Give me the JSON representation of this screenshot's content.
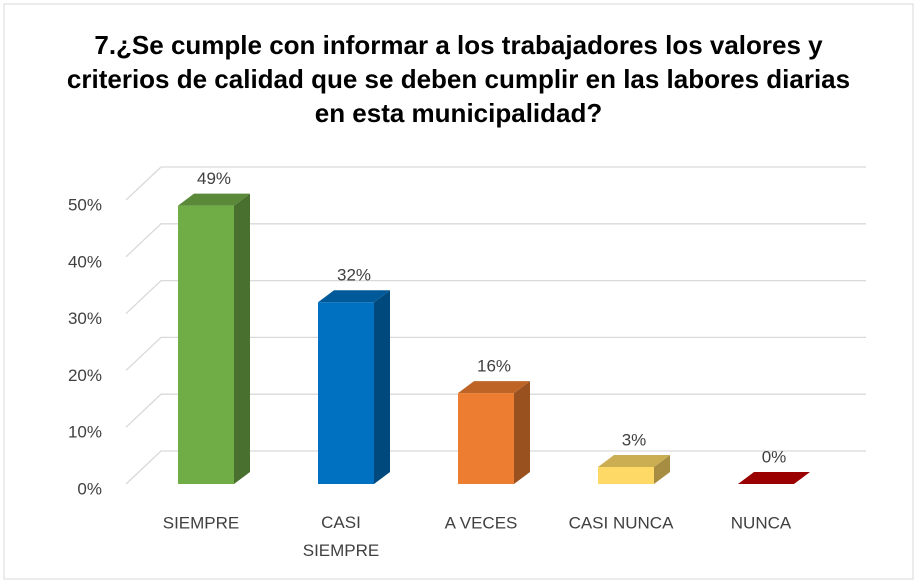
{
  "chart_data": {
    "type": "bar3d",
    "title": "7.¿Se cumple con informar a los trabajadores los valores y criterios de calidad que se deben cumplir en las labores diarias en esta municipalidad?",
    "categories": [
      "SIEMPRE",
      "CASI SIEMPRE",
      "A VECES",
      "CASI NUNCA",
      "NUNCA"
    ],
    "values": [
      49,
      32,
      16,
      3,
      0
    ],
    "value_labels": [
      "49%",
      "32%",
      "16%",
      "3%",
      "0%"
    ],
    "colors": [
      "#70ad47",
      "#0070c0",
      "#ed7d31",
      "#ffd966",
      "#c00000"
    ],
    "ylim": [
      0,
      50
    ],
    "yticks": [
      {
        "value": 0,
        "label": "0%"
      },
      {
        "value": 10,
        "label": "10%"
      },
      {
        "value": 20,
        "label": "20%"
      },
      {
        "value": 30,
        "label": "30%"
      },
      {
        "value": 40,
        "label": "40%"
      },
      {
        "value": 50,
        "label": "50%"
      }
    ],
    "grid": true
  }
}
